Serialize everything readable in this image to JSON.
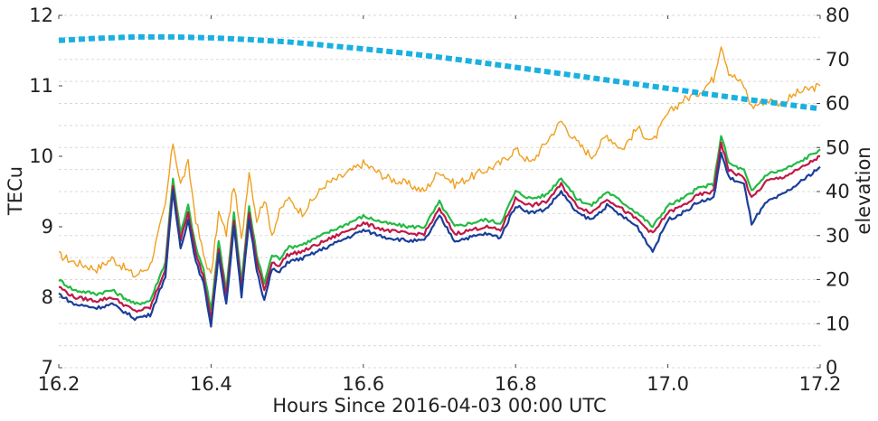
{
  "chart_data": {
    "type": "line",
    "xlabel": "Hours Since 2016-04-03 00:00 UTC",
    "ylabel_left": "TECu",
    "ylabel_right": "elevation",
    "xlim": [
      16.2,
      17.2
    ],
    "ylim_left": [
      7,
      12
    ],
    "ylim_right": [
      0,
      80
    ],
    "x_ticks": [
      "16.2",
      "16.4",
      "16.6",
      "16.8",
      "17.0",
      "17.2"
    ],
    "y_left_ticks": [
      "7",
      "8",
      "9",
      "10",
      "11",
      "12"
    ],
    "y_right_ticks": [
      "0",
      "10",
      "20",
      "30",
      "40",
      "50",
      "60",
      "70",
      "80"
    ],
    "grid": true,
    "legend": "none",
    "colors": {
      "orange": "#f0a020",
      "green": "#22bb44",
      "crimson": "#c01848",
      "blue": "#1a3f99",
      "elevation": "#1ab0e0"
    },
    "tec_series": [
      {
        "color": "#f0a020",
        "x": [
          16.2,
          16.22,
          16.25,
          16.27,
          16.3,
          16.32,
          16.34,
          16.35,
          16.36,
          16.37,
          16.38,
          16.39,
          16.4,
          16.41,
          16.42,
          16.43,
          16.44,
          16.45,
          16.46,
          16.47,
          16.48,
          16.49,
          16.5,
          16.52,
          16.55,
          16.57,
          16.6,
          16.63,
          16.66,
          16.68,
          16.7,
          16.72,
          16.74,
          16.76,
          16.78,
          16.8,
          16.82,
          16.84,
          16.86,
          16.88,
          16.9,
          16.92,
          16.94,
          16.96,
          16.98,
          17.0,
          17.02,
          17.04,
          17.06,
          17.07,
          17.08,
          17.1,
          17.11,
          17.13,
          17.15,
          17.17,
          17.2
        ],
        "y": [
          8.6,
          8.5,
          8.4,
          8.55,
          8.3,
          8.45,
          9.3,
          10.2,
          9.6,
          9.9,
          9.1,
          8.6,
          8.3,
          9.2,
          8.9,
          9.6,
          8.8,
          9.8,
          9.1,
          9.4,
          8.9,
          9.2,
          9.4,
          9.2,
          9.6,
          9.7,
          9.9,
          9.7,
          9.6,
          9.5,
          9.8,
          9.6,
          9.7,
          9.8,
          9.9,
          10.1,
          9.9,
          10.2,
          10.5,
          10.2,
          10.0,
          10.3,
          10.1,
          10.4,
          10.2,
          10.6,
          10.8,
          10.9,
          11.1,
          11.6,
          11.2,
          11.0,
          10.7,
          10.8,
          10.75,
          10.9,
          11.0
        ]
      },
      {
        "color": "#22bb44",
        "x": [
          16.2,
          16.22,
          16.25,
          16.27,
          16.3,
          16.32,
          16.34,
          16.35,
          16.36,
          16.37,
          16.38,
          16.39,
          16.4,
          16.41,
          16.42,
          16.43,
          16.44,
          16.45,
          16.46,
          16.47,
          16.48,
          16.49,
          16.5,
          16.52,
          16.55,
          16.57,
          16.6,
          16.63,
          16.66,
          16.68,
          16.7,
          16.72,
          16.74,
          16.76,
          16.78,
          16.8,
          16.82,
          16.84,
          16.86,
          16.88,
          16.9,
          16.92,
          16.94,
          16.96,
          16.98,
          17.0,
          17.02,
          17.04,
          17.06,
          17.07,
          17.08,
          17.1,
          17.11,
          17.13,
          17.15,
          17.17,
          17.2
        ],
        "y": [
          8.25,
          8.1,
          8.05,
          8.1,
          7.9,
          7.95,
          8.5,
          9.7,
          8.9,
          9.3,
          8.7,
          8.4,
          7.8,
          8.8,
          8.1,
          9.2,
          8.2,
          9.3,
          8.6,
          8.2,
          8.6,
          8.55,
          8.7,
          8.75,
          8.9,
          9.0,
          9.15,
          9.05,
          9.0,
          9.0,
          9.35,
          9.0,
          9.05,
          9.1,
          9.05,
          9.5,
          9.4,
          9.45,
          9.7,
          9.4,
          9.3,
          9.5,
          9.35,
          9.2,
          9.0,
          9.3,
          9.4,
          9.55,
          9.6,
          10.3,
          9.9,
          9.8,
          9.5,
          9.75,
          9.8,
          9.9,
          10.1
        ]
      },
      {
        "color": "#c01848",
        "x": [
          16.2,
          16.22,
          16.25,
          16.27,
          16.3,
          16.32,
          16.34,
          16.35,
          16.36,
          16.37,
          16.38,
          16.39,
          16.4,
          16.41,
          16.42,
          16.43,
          16.44,
          16.45,
          16.46,
          16.47,
          16.48,
          16.49,
          16.5,
          16.52,
          16.55,
          16.57,
          16.6,
          16.63,
          16.66,
          16.68,
          16.7,
          16.72,
          16.74,
          16.76,
          16.78,
          16.8,
          16.82,
          16.84,
          16.86,
          16.88,
          16.9,
          16.92,
          16.94,
          16.96,
          16.98,
          17.0,
          17.02,
          17.04,
          17.06,
          17.07,
          17.08,
          17.1,
          17.11,
          17.13,
          17.15,
          17.17,
          17.2
        ],
        "y": [
          8.15,
          8.0,
          7.95,
          8.0,
          7.8,
          7.85,
          8.4,
          9.6,
          8.8,
          9.2,
          8.6,
          8.3,
          7.7,
          8.7,
          8.0,
          9.1,
          8.1,
          9.2,
          8.5,
          8.1,
          8.5,
          8.45,
          8.6,
          8.65,
          8.8,
          8.9,
          9.05,
          8.95,
          8.9,
          8.9,
          9.25,
          8.9,
          8.95,
          9.0,
          8.95,
          9.4,
          9.3,
          9.35,
          9.6,
          9.3,
          9.2,
          9.4,
          9.25,
          9.1,
          8.9,
          9.2,
          9.3,
          9.45,
          9.5,
          10.2,
          9.8,
          9.7,
          9.4,
          9.65,
          9.7,
          9.8,
          10.0
        ]
      },
      {
        "color": "#1a3f99",
        "x": [
          16.2,
          16.22,
          16.25,
          16.27,
          16.3,
          16.32,
          16.34,
          16.35,
          16.36,
          16.37,
          16.38,
          16.39,
          16.4,
          16.41,
          16.42,
          16.43,
          16.44,
          16.45,
          16.46,
          16.47,
          16.48,
          16.49,
          16.5,
          16.52,
          16.55,
          16.57,
          16.6,
          16.63,
          16.66,
          16.68,
          16.7,
          16.72,
          16.74,
          16.76,
          16.78,
          16.8,
          16.82,
          16.84,
          16.86,
          16.88,
          16.9,
          16.92,
          16.94,
          16.96,
          16.98,
          17.0,
          17.02,
          17.04,
          17.06,
          17.07,
          17.08,
          17.1,
          17.11,
          17.13,
          17.15,
          17.17,
          17.2
        ],
        "y": [
          8.05,
          7.9,
          7.85,
          7.9,
          7.7,
          7.75,
          8.3,
          9.5,
          8.7,
          9.1,
          8.5,
          8.2,
          7.6,
          8.6,
          7.9,
          9.0,
          8.0,
          9.1,
          8.4,
          7.95,
          8.4,
          8.35,
          8.5,
          8.55,
          8.7,
          8.8,
          8.95,
          8.85,
          8.8,
          8.8,
          9.15,
          8.8,
          8.85,
          8.9,
          8.85,
          9.3,
          9.2,
          9.25,
          9.5,
          9.2,
          9.1,
          9.3,
          9.15,
          9.0,
          8.65,
          9.1,
          9.2,
          9.35,
          9.4,
          10.05,
          9.7,
          9.6,
          9.05,
          9.35,
          9.45,
          9.6,
          9.85
        ]
      }
    ],
    "elevation_series": {
      "color": "#1ab0e0",
      "x": [
        16.2,
        16.25,
        16.3,
        16.35,
        16.4,
        16.45,
        16.5,
        16.55,
        16.6,
        16.65,
        16.7,
        16.75,
        16.8,
        16.85,
        16.9,
        16.95,
        17.0,
        17.05,
        17.1,
        17.15,
        17.2
      ],
      "y": [
        74.3,
        74.8,
        75.1,
        75.1,
        74.9,
        74.5,
        74.0,
        73.2,
        72.4,
        71.5,
        70.5,
        69.4,
        68.2,
        67.0,
        65.8,
        64.6,
        63.4,
        62.2,
        61.0,
        59.9,
        58.8
      ]
    }
  }
}
